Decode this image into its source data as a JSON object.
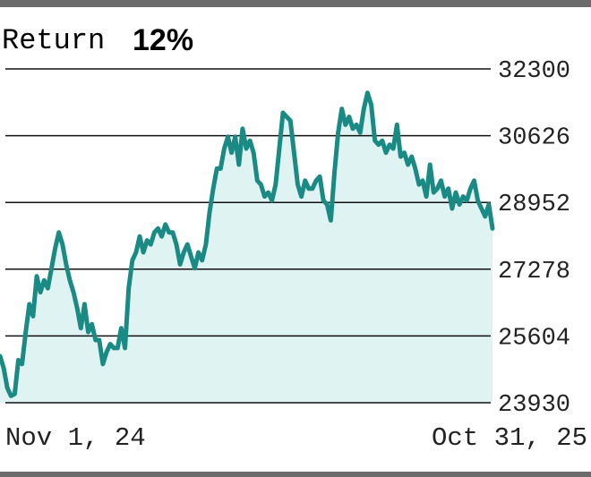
{
  "header": {
    "label": "Return",
    "value": "12%"
  },
  "colors": {
    "line": "#1a8a84",
    "fill": "#dff3f2",
    "grid": "#111111",
    "frame": "#6b6b6b"
  },
  "chart_data": {
    "type": "area",
    "title": "Return 12%",
    "xlabel": "",
    "ylabel": "",
    "ylim": [
      23930,
      32300
    ],
    "yticks": [
      "32300",
      "30626",
      "28952",
      "27278",
      "25604",
      "23930"
    ],
    "x_tick_labels": [
      "Nov 1, 24",
      "Oct 31, 25"
    ],
    "grid": true,
    "series": [
      {
        "values": [
          25100,
          24800,
          24300,
          24100,
          24150,
          25000,
          24900,
          25700,
          26400,
          26100,
          27100,
          26700,
          27000,
          26800,
          27300,
          27800,
          28200,
          27900,
          27400,
          27000,
          26700,
          26300,
          25800,
          26400,
          25700,
          25900,
          25500,
          25500,
          24900,
          25200,
          25400,
          25300,
          25300,
          25800,
          25300,
          26800,
          27500,
          27700,
          28100,
          27700,
          28000,
          27900,
          28200,
          28300,
          28100,
          28400,
          28200,
          28200,
          27900,
          27400,
          27700,
          27900,
          27600,
          27300,
          27700,
          27500,
          27900,
          28700,
          29300,
          29800,
          29800,
          30300,
          30600,
          30200,
          30600,
          29900,
          30800,
          30300,
          30500,
          30200,
          29500,
          29400,
          29100,
          29200,
          29000,
          29400,
          30300,
          31200,
          31100,
          31000,
          30200,
          29400,
          29100,
          29500,
          29300,
          29300,
          29500,
          29600,
          29000,
          28900,
          28500,
          29700,
          30700,
          31300,
          30900,
          31100,
          30800,
          30900,
          30700,
          31300,
          31700,
          31400,
          30500,
          30400,
          30500,
          30200,
          30400,
          30300,
          30900,
          30100,
          30200,
          29900,
          30100,
          29800,
          29400,
          29500,
          29100,
          29900,
          29200,
          29300,
          29500,
          29100,
          29300,
          28800,
          29200,
          28900,
          29100,
          29000,
          29300,
          29500,
          29000,
          28800,
          28600,
          28900,
          28300
        ]
      }
    ]
  }
}
